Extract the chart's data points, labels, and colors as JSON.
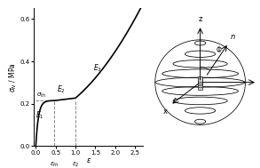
{
  "ylabel": "$\\sigma_N$ / MPa",
  "xlabel": "$\\varepsilon$",
  "ylim": [
    0,
    0.65
  ],
  "xlim": [
    -0.05,
    2.7
  ],
  "yticks": [
    0,
    0.2,
    0.4,
    0.6
  ],
  "xticks": [
    0,
    0.5,
    1.0,
    1.5,
    2.0,
    2.5
  ],
  "sigma_th": 0.215,
  "eps_th": 0.47,
  "eps_2": 1.0,
  "background_color": "#ffffff",
  "curve_color": "#000000",
  "dashed_color": "#888888"
}
